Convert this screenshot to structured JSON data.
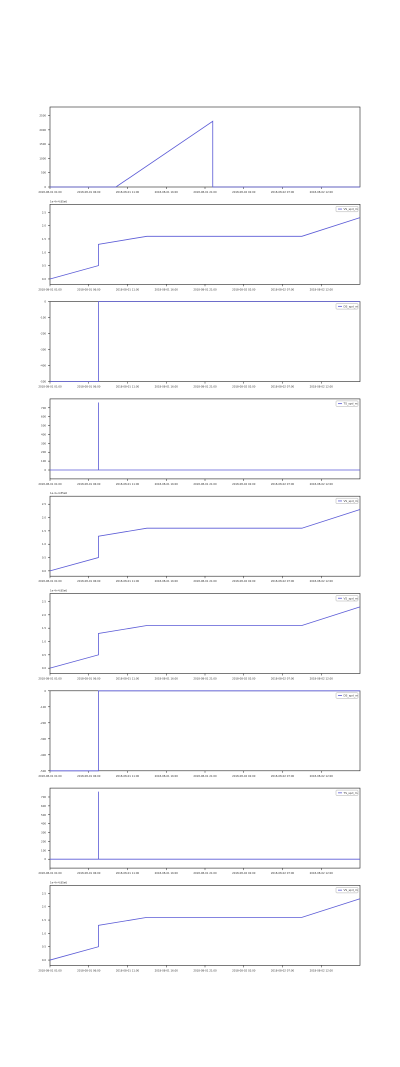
{
  "colors": {
    "line": "#5b5bd6",
    "axis": "#222222",
    "text": "#333333",
    "background": "#ffffff"
  },
  "chart_data": [
    {
      "type": "line",
      "xlim": [
        0,
        8
      ],
      "ylim": [
        0,
        2800
      ],
      "x_tick_labels": [
        "2018-08-01 01:00",
        "2018-08-01 06:00",
        "2018-08-01 11:00",
        "2018-08-01 16:00",
        "2018-08-01 21:00",
        "2018-08-02 02:00",
        "2018-08-02 07:00",
        "2018-08-02 12:00"
      ],
      "y_ticks": [
        0,
        500,
        1000,
        1500,
        2000,
        2500
      ],
      "y_tick_labels": [
        "0",
        "500",
        "1000",
        "1500",
        "2000",
        "2500"
      ],
      "legend": "",
      "series": [
        {
          "x": [
            0,
            1.7,
            4.2,
            4.2,
            8
          ],
          "y": [
            0,
            0,
            2300,
            0,
            0
          ]
        }
      ]
    },
    {
      "type": "line",
      "xlim": [
        0,
        8
      ],
      "ylim": [
        -0.2,
        2.8
      ],
      "axis_offset_label": "1e-4+4.85e6",
      "x_tick_labels": [
        "2018-08-01 01:00",
        "2018-08-01 06:00",
        "2018-08-01 11:00",
        "2018-08-01 16:00",
        "2018-08-01 21:00",
        "2018-08-02 02:00",
        "2018-08-02 07:00",
        "2018-08-02 12:00"
      ],
      "y_ticks": [
        0,
        0.5,
        1.0,
        1.5,
        2.0,
        2.5
      ],
      "y_tick_labels": [
        "0.0",
        "0.5",
        "1.0",
        "1.5",
        "2.0",
        "2.5"
      ],
      "legend": "VS_spd_m",
      "series": [
        {
          "x": [
            0,
            1.25,
            1.25,
            2.5,
            6.5,
            8
          ],
          "y": [
            0,
            0.5,
            1.3,
            1.6,
            1.6,
            2.3
          ]
        }
      ]
    },
    {
      "type": "line",
      "xlim": [
        0,
        8
      ],
      "ylim": [
        -500,
        0
      ],
      "x_tick_labels": [
        "2018-08-01 01:00",
        "2018-08-01 06:00",
        "2018-08-01 11:00",
        "2018-08-01 16:00",
        "2018-08-01 21:00",
        "2018-08-02 02:00",
        "2018-08-02 07:00",
        "2018-08-02 12:00"
      ],
      "y_ticks": [
        0,
        -100,
        -200,
        -300,
        -400,
        -500
      ],
      "y_tick_labels": [
        "0",
        "-100",
        "-200",
        "-300",
        "-400",
        "-500"
      ],
      "legend": "DS_spd_m",
      "series": [
        {
          "x": [
            0,
            1.25,
            1.25,
            8
          ],
          "y": [
            -500,
            -500,
            0,
            0
          ]
        }
      ]
    },
    {
      "type": "line",
      "xlim": [
        0,
        8
      ],
      "ylim": [
        -100,
        800
      ],
      "x_tick_labels": [
        "2018-08-01 01:00",
        "2018-08-01 06:00",
        "2018-08-01 11:00",
        "2018-08-01 16:00",
        "2018-08-01 21:00",
        "2018-08-02 02:00",
        "2018-08-02 07:00",
        "2018-08-02 12:00"
      ],
      "y_ticks": [
        0,
        100,
        200,
        300,
        400,
        500,
        600,
        700
      ],
      "y_tick_labels": [
        "0",
        "100",
        "200",
        "300",
        "400",
        "500",
        "600",
        "700"
      ],
      "legend": "TS_spd_m",
      "series": [
        {
          "x": [
            0,
            1.25,
            1.25,
            1.25,
            8
          ],
          "y": [
            0,
            0,
            760,
            0,
            0
          ]
        }
      ]
    },
    {
      "type": "line",
      "xlim": [
        0,
        8
      ],
      "ylim": [
        -0.2,
        2.8
      ],
      "axis_offset_label": "1e-4+4.85e6",
      "x_tick_labels": [
        "2018-08-01 01:00",
        "2018-08-01 06:00",
        "2018-08-01 11:00",
        "2018-08-01 16:00",
        "2018-08-01 21:00",
        "2018-08-02 02:00",
        "2018-08-02 07:00",
        "2018-08-02 12:00"
      ],
      "y_ticks": [
        0,
        0.5,
        1.0,
        1.5,
        2.0,
        2.5
      ],
      "y_tick_labels": [
        "0.0",
        "0.5",
        "1.0",
        "1.5",
        "2.0",
        "2.5"
      ],
      "legend": "VS_spd_m",
      "series": [
        {
          "x": [
            0,
            1.25,
            1.25,
            2.5,
            6.5,
            8
          ],
          "y": [
            0,
            0.5,
            1.3,
            1.6,
            1.6,
            2.3
          ]
        }
      ]
    },
    {
      "type": "line",
      "xlim": [
        0,
        8
      ],
      "ylim": [
        -0.2,
        2.8
      ],
      "axis_offset_label": "1e-4+4.85e6",
      "x_tick_labels": [
        "2018-08-01 01:00",
        "2018-08-01 06:00",
        "2018-08-01 11:00",
        "2018-08-01 16:00",
        "2018-08-01 21:00",
        "2018-08-02 02:00",
        "2018-08-02 07:00",
        "2018-08-02 12:00"
      ],
      "y_ticks": [
        0,
        0.5,
        1.0,
        1.5,
        2.0,
        2.5
      ],
      "y_tick_labels": [
        "0.0",
        "0.5",
        "1.0",
        "1.5",
        "2.0",
        "2.5"
      ],
      "legend": "VS_spd_m",
      "series": [
        {
          "x": [
            0,
            1.25,
            1.25,
            2.5,
            6.5,
            8
          ],
          "y": [
            0,
            0.5,
            1.3,
            1.6,
            1.6,
            2.3
          ]
        }
      ]
    },
    {
      "type": "line",
      "xlim": [
        0,
        8
      ],
      "ylim": [
        -500,
        0
      ],
      "x_tick_labels": [
        "2018-08-01 01:00",
        "2018-08-01 06:00",
        "2018-08-01 11:00",
        "2018-08-01 16:00",
        "2018-08-01 21:00",
        "2018-08-02 02:00",
        "2018-08-02 07:00",
        "2018-08-02 12:00"
      ],
      "y_ticks": [
        0,
        -100,
        -200,
        -300,
        -400,
        -500
      ],
      "y_tick_labels": [
        "0",
        "-100",
        "-200",
        "-300",
        "-400",
        "-500"
      ],
      "legend": "DS_spd_m",
      "series": [
        {
          "x": [
            0,
            1.25,
            1.25,
            8
          ],
          "y": [
            -500,
            -500,
            0,
            0
          ]
        }
      ]
    },
    {
      "type": "line",
      "xlim": [
        0,
        8
      ],
      "ylim": [
        -100,
        800
      ],
      "x_tick_labels": [
        "2018-08-01 01:00",
        "2018-08-01 06:00",
        "2018-08-01 11:00",
        "2018-08-01 16:00",
        "2018-08-01 21:00",
        "2018-08-02 02:00",
        "2018-08-02 07:00",
        "2018-08-02 12:00"
      ],
      "y_ticks": [
        0,
        100,
        200,
        300,
        400,
        500,
        600,
        700
      ],
      "y_tick_labels": [
        "0",
        "100",
        "200",
        "300",
        "400",
        "500",
        "600",
        "700"
      ],
      "legend": "TS_spd_m",
      "series": [
        {
          "x": [
            0,
            1.25,
            1.25,
            1.25,
            8
          ],
          "y": [
            0,
            0,
            760,
            0,
            0
          ]
        }
      ]
    },
    {
      "type": "line",
      "xlim": [
        0,
        8
      ],
      "ylim": [
        -0.2,
        2.8
      ],
      "axis_offset_label": "1e-4+4.85e6",
      "x_tick_labels": [
        "2018-08-01 01:00",
        "2018-08-01 06:00",
        "2018-08-01 11:00",
        "2018-08-01 16:00",
        "2018-08-01 21:00",
        "2018-08-02 02:00",
        "2018-08-02 07:00",
        "2018-08-02 12:00"
      ],
      "y_ticks": [
        0,
        0.5,
        1.0,
        1.5,
        2.0,
        2.5
      ],
      "y_tick_labels": [
        "0.0",
        "0.5",
        "1.0",
        "1.5",
        "2.0",
        "2.5"
      ],
      "legend": "VS_spd_m",
      "series": [
        {
          "x": [
            0,
            1.25,
            1.25,
            2.5,
            6.5,
            8
          ],
          "y": [
            0,
            0.5,
            1.3,
            1.6,
            1.6,
            2.3
          ]
        }
      ]
    }
  ]
}
